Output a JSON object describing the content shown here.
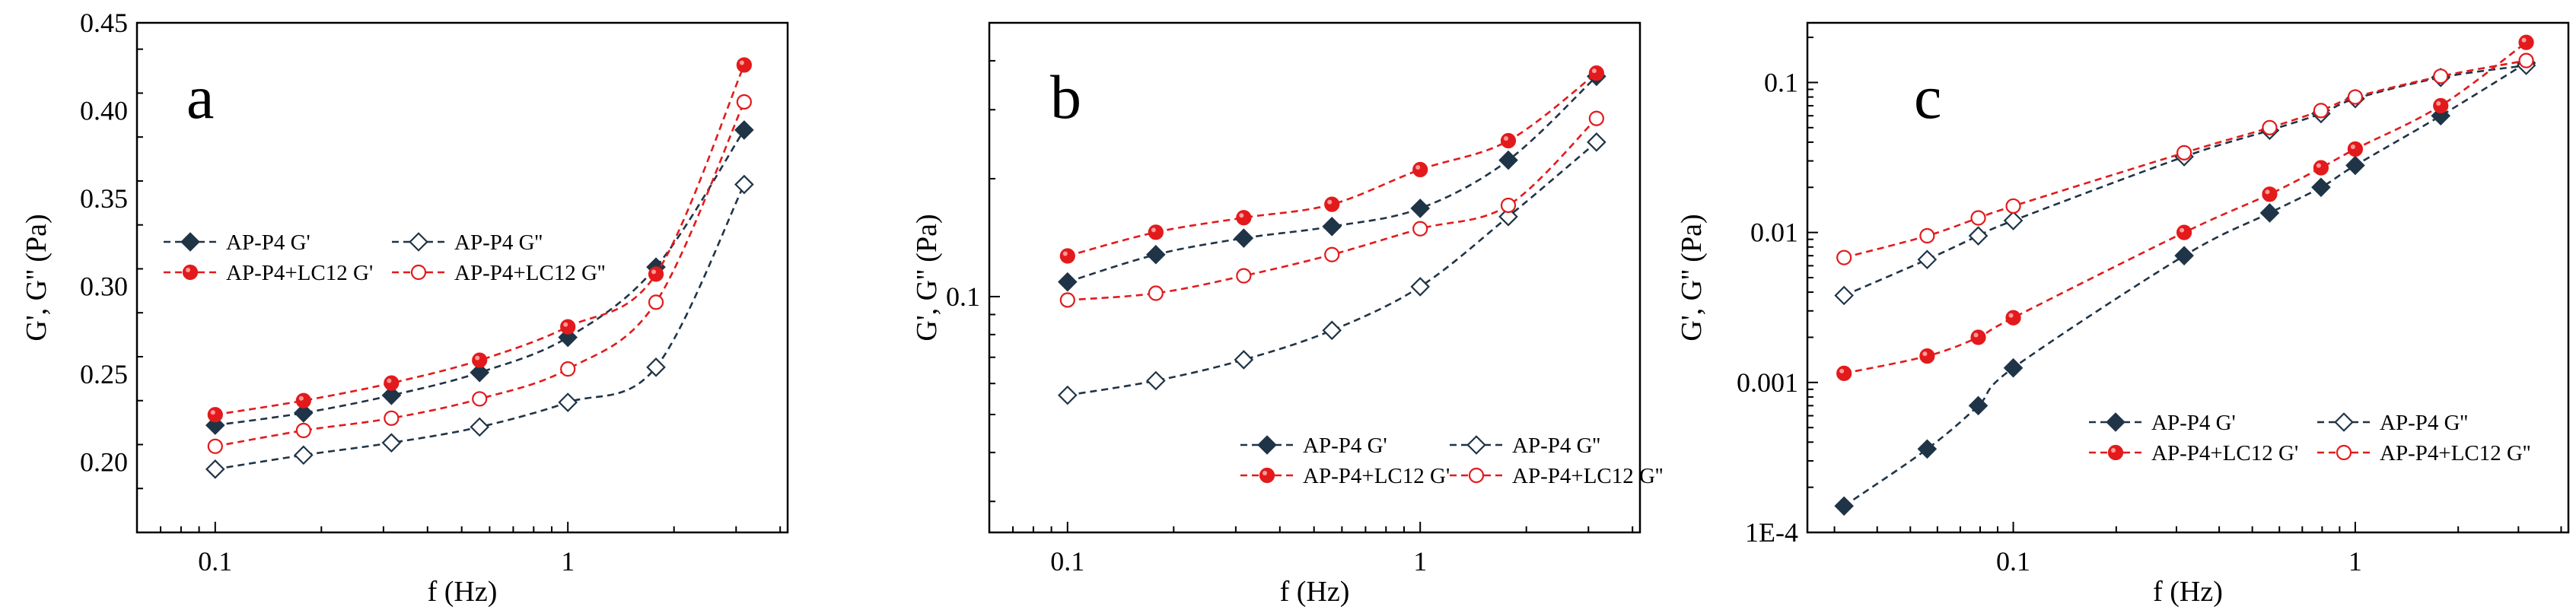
{
  "style": {
    "dark_color": "#1f3447",
    "red_color": "#e31a1c"
  },
  "chart_data": [
    {
      "panel": "a",
      "type": "line",
      "xscale": "log",
      "yscale": "linear",
      "xlabel": "f (Hz)",
      "ylabel": "G', G'' (Pa)",
      "xlim": [
        0.06,
        4.2
      ],
      "ylim": [
        0.16,
        0.45
      ],
      "xticks": [
        0.1,
        1
      ],
      "xtick_labels": [
        "0.1",
        "1"
      ],
      "yticks": [
        0.2,
        0.25,
        0.3,
        0.35,
        0.4,
        0.45
      ],
      "ytick_labels": [
        "0.20",
        "0.25",
        "0.30",
        "0.35",
        "0.40",
        "0.45"
      ],
      "legend_position": "middle-left",
      "legend": [
        "AP-P4 G'",
        "AP-P4 G''",
        "AP-P4+LC12 G'",
        "AP-P4+LC12 G''"
      ],
      "series": [
        {
          "name": "AP-P4 G'",
          "color": "#1f3447",
          "marker": "diamond-filled",
          "x": [
            0.1,
            0.178,
            0.316,
            0.562,
            1.0,
            1.778,
            3.162
          ],
          "y": [
            0.221,
            0.228,
            0.238,
            0.251,
            0.271,
            0.311,
            0.389
          ]
        },
        {
          "name": "AP-P4 G''",
          "color": "#1f3447",
          "marker": "diamond-open",
          "x": [
            0.1,
            0.178,
            0.316,
            0.562,
            1.0,
            1.778,
            3.162
          ],
          "y": [
            0.196,
            0.204,
            0.211,
            0.22,
            0.234,
            0.254,
            0.358
          ]
        },
        {
          "name": "AP-P4+LC12 G'",
          "color": "#e31a1c",
          "marker": "circle-filled",
          "x": [
            0.1,
            0.178,
            0.316,
            0.562,
            1.0,
            1.778,
            3.162
          ],
          "y": [
            0.227,
            0.235,
            0.245,
            0.258,
            0.277,
            0.307,
            0.426
          ]
        },
        {
          "name": "AP-P4+LC12 G''",
          "color": "#e31a1c",
          "marker": "circle-open",
          "x": [
            0.1,
            0.178,
            0.316,
            0.562,
            1.0,
            1.778,
            3.162
          ],
          "y": [
            0.209,
            0.218,
            0.225,
            0.236,
            0.253,
            0.291,
            0.405
          ]
        }
      ]
    },
    {
      "panel": "b",
      "type": "line",
      "xscale": "log",
      "yscale": "log",
      "xlabel": "f (Hz)",
      "ylabel": "G', G'' (Pa)",
      "xlim": [
        0.06,
        4.2
      ],
      "ylim": [
        0.025,
        0.5
      ],
      "xticks": [
        0.1,
        1
      ],
      "xtick_labels": [
        "0.1",
        "1"
      ],
      "yticks": [
        0.1
      ],
      "ytick_labels": [
        "0.1"
      ],
      "legend_position": "bottom-right",
      "legend": [
        "AP-P4 G'",
        "AP-P4 G''",
        "AP-P4+LC12 G'",
        "AP-P4+LC12 G''"
      ],
      "series": [
        {
          "name": "AP-P4 G'",
          "color": "#1f3447",
          "marker": "diamond-filled",
          "x": [
            0.1,
            0.178,
            0.316,
            0.562,
            1.0,
            1.778,
            3.162
          ],
          "y": [
            0.109,
            0.128,
            0.141,
            0.151,
            0.168,
            0.223,
            0.365
          ]
        },
        {
          "name": "AP-P4 G''",
          "color": "#1f3447",
          "marker": "diamond-open",
          "x": [
            0.1,
            0.178,
            0.316,
            0.562,
            1.0,
            1.778,
            3.162
          ],
          "y": [
            0.056,
            0.061,
            0.069,
            0.082,
            0.106,
            0.16,
            0.248
          ]
        },
        {
          "name": "AP-P4+LC12 G'",
          "color": "#e31a1c",
          "marker": "circle-filled",
          "x": [
            0.1,
            0.178,
            0.316,
            0.562,
            1.0,
            1.778,
            3.162
          ],
          "y": [
            0.127,
            0.146,
            0.159,
            0.172,
            0.211,
            0.25,
            0.372
          ]
        },
        {
          "name": "AP-P4+LC12 G''",
          "color": "#e31a1c",
          "marker": "circle-open",
          "x": [
            0.1,
            0.178,
            0.316,
            0.562,
            1.0,
            1.778,
            3.162
          ],
          "y": [
            0.098,
            0.102,
            0.113,
            0.128,
            0.149,
            0.171,
            0.285
          ]
        }
      ]
    },
    {
      "panel": "c",
      "type": "line",
      "xscale": "log",
      "yscale": "log",
      "xlabel": "f (Hz)",
      "ylabel": "G', G'' (Pa)",
      "xlim": [
        0.025,
        4.2
      ],
      "ylim": [
        0.0001,
        0.25
      ],
      "xticks": [
        0.1,
        1
      ],
      "xtick_labels": [
        "0.1",
        "1"
      ],
      "yticks": [
        0.0001,
        0.001,
        0.01,
        0.1
      ],
      "ytick_labels": [
        "1E-4",
        "0.001",
        "0.01",
        "0.1"
      ],
      "legend_position": "bottom-right",
      "legend": [
        "AP-P4 G'",
        "AP-P4 G''",
        "AP-P4+LC12 G'",
        "AP-P4+LC12 G''"
      ],
      "series": [
        {
          "name": "AP-P4 G'",
          "color": "#1f3447",
          "marker": "diamond-filled",
          "x": [
            0.032,
            0.056,
            0.079,
            0.1,
            0.316,
            0.562,
            0.794,
            1.0,
            1.778,
            3.162
          ],
          "y": [
            0.00015,
            0.00036,
            0.0007,
            0.00125,
            0.007,
            0.0135,
            0.02,
            0.028,
            0.06,
            0.135
          ]
        },
        {
          "name": "AP-P4 G''",
          "color": "#1f3447",
          "marker": "diamond-open",
          "x": [
            0.032,
            0.056,
            0.079,
            0.1,
            0.316,
            0.562,
            0.794,
            1.0,
            1.778,
            3.162
          ],
          "y": [
            0.0038,
            0.0066,
            0.0095,
            0.012,
            0.032,
            0.048,
            0.062,
            0.078,
            0.108,
            0.13
          ]
        },
        {
          "name": "AP-P4+LC12 G'",
          "color": "#e31a1c",
          "marker": "circle-filled",
          "x": [
            0.032,
            0.056,
            0.079,
            0.1,
            0.316,
            0.562,
            0.794,
            1.0,
            1.778,
            3.162
          ],
          "y": [
            0.00115,
            0.0015,
            0.002,
            0.0027,
            0.01,
            0.018,
            0.027,
            0.036,
            0.07,
            0.185
          ]
        },
        {
          "name": "AP-P4+LC12 G''",
          "color": "#e31a1c",
          "marker": "circle-open",
          "x": [
            0.032,
            0.056,
            0.079,
            0.1,
            0.316,
            0.562,
            0.794,
            1.0,
            1.778,
            3.162
          ],
          "y": [
            0.0068,
            0.0095,
            0.0125,
            0.015,
            0.034,
            0.05,
            0.065,
            0.08,
            0.11,
            0.14
          ]
        }
      ]
    }
  ]
}
